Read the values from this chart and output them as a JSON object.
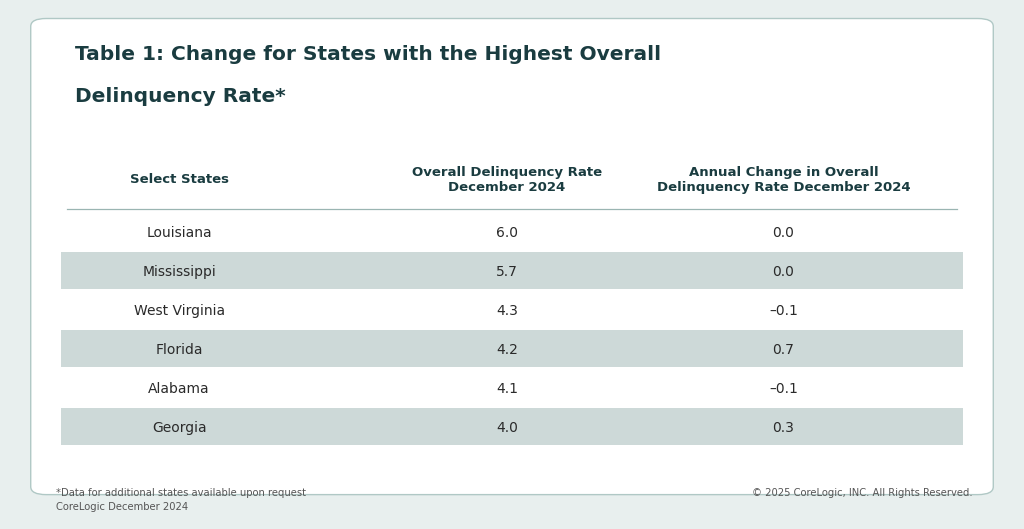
{
  "title_line1": "Table 1: Change for States with the Highest Overall",
  "title_line2": "Delinquency Rate*",
  "col_headers": [
    "Select States",
    "Overall Delinquency Rate\nDecember 2024",
    "Annual Change in Overall\nDelinquency Rate December 2024"
  ],
  "rows": [
    [
      "Louisiana",
      "6.0",
      "0.0"
    ],
    [
      "Mississippi",
      "5.7",
      "0.0"
    ],
    [
      "West Virginia",
      "4.3",
      "–0.1"
    ],
    [
      "Florida",
      "4.2",
      "0.7"
    ],
    [
      "Alabama",
      "4.1",
      "–0.1"
    ],
    [
      "Georgia",
      "4.0",
      "0.3"
    ]
  ],
  "row_shaded": [
    false,
    true,
    false,
    true,
    false,
    true
  ],
  "bg_color": "#e8efee",
  "table_bg": "#ffffff",
  "shaded_row_color": "#cdd9d8",
  "header_text_color": "#1a3c40",
  "cell_text_color": "#2a2a2a",
  "title_color": "#1a3c40",
  "footer_left_line1": "*Data for additional states available upon request",
  "footer_left_line2": "CoreLogic December 2024",
  "footer_right": "© 2025 CoreLogic, INC. All Rights Reserved.",
  "footer_color": "#555555",
  "divider_color": "#9ab5b2",
  "outer_border_color": "#b0c8c5"
}
